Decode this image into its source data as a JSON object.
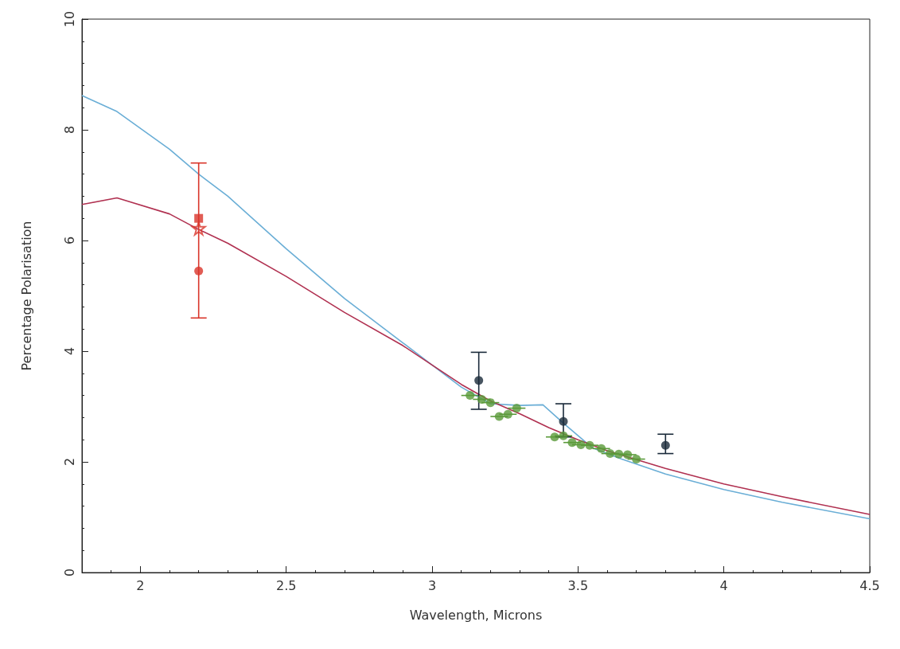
{
  "chart_data": {
    "type": "scatter",
    "xlabel": "Wavelength, Microns",
    "ylabel": "Percentage Polarisation",
    "xlim": [
      1.8,
      4.5
    ],
    "ylim": [
      0,
      10
    ],
    "xticks": [
      2,
      2.5,
      3,
      3.5,
      4,
      4.5
    ],
    "yticks": [
      0,
      2,
      4,
      6,
      8,
      10
    ],
    "grid": false,
    "series": [
      {
        "type": "line",
        "color": "#6aaed6",
        "marker": "none",
        "line_style": "solid",
        "x": [
          1.8,
          1.92,
          2.1,
          2.2,
          2.3,
          2.5,
          2.7,
          2.9,
          3.0,
          3.1,
          3.2,
          3.3,
          3.38,
          3.45,
          3.55,
          3.65,
          3.8,
          4.0,
          4.2,
          4.5
        ],
        "values": [
          8.62,
          8.33,
          7.65,
          7.2,
          6.8,
          5.85,
          4.95,
          4.15,
          3.75,
          3.35,
          3.05,
          3.02,
          3.03,
          2.7,
          2.25,
          2.05,
          1.78,
          1.5,
          1.27,
          0.97
        ]
      },
      {
        "type": "line",
        "color": "#b03050",
        "marker": "none",
        "line_style": "solid",
        "x": [
          1.8,
          1.92,
          2.1,
          2.2,
          2.3,
          2.5,
          2.7,
          2.9,
          3.0,
          3.1,
          3.2,
          3.3,
          3.4,
          3.5,
          3.6,
          3.8,
          4.0,
          4.2,
          4.5
        ],
        "values": [
          6.65,
          6.77,
          6.48,
          6.2,
          5.95,
          5.35,
          4.7,
          4.1,
          3.75,
          3.4,
          3.1,
          2.87,
          2.62,
          2.4,
          2.2,
          1.88,
          1.6,
          1.37,
          1.05
        ]
      },
      {
        "color": "#5a9a3a",
        "marker": "circle",
        "x": [
          3.13,
          3.17,
          3.2,
          3.23,
          3.26,
          3.29,
          3.42,
          3.45,
          3.48,
          3.51,
          3.54,
          3.58,
          3.61,
          3.64,
          3.67,
          3.7
        ],
        "values": [
          3.2,
          3.13,
          3.07,
          2.82,
          2.86,
          2.97,
          2.45,
          2.47,
          2.35,
          2.31,
          2.3,
          2.24,
          2.15,
          2.14,
          2.13,
          2.05
        ],
        "xerrors": [
          0.03,
          0.03,
          0.03,
          0.03,
          0.03,
          0.03,
          0.03,
          0.03,
          0.03,
          0.03,
          0.03,
          0.03,
          0.03,
          0.03,
          0.03,
          0.03
        ]
      },
      {
        "color": "#1a2a3a",
        "marker": "circle",
        "x": [
          3.16,
          3.45,
          3.8
        ],
        "values": [
          3.47,
          2.73,
          2.3
        ],
        "errors": [
          [
            2.95,
            3.98
          ],
          [
            2.45,
            3.05
          ],
          [
            2.15,
            2.5
          ]
        ]
      },
      {
        "type": "scatter",
        "color": "#d9352a",
        "marker": "circle",
        "x": [
          2.2
        ],
        "values": [
          5.45
        ],
        "errors": [
          [
            4.6,
            7.4
          ]
        ]
      },
      {
        "type": "scatter",
        "color": "#d9352a",
        "marker": "square",
        "x": [
          2.2
        ],
        "values": [
          6.4
        ]
      },
      {
        "type": "scatter",
        "color": "#d9352a",
        "marker": "star",
        "x": [
          2.2
        ],
        "values": [
          6.22
        ]
      }
    ]
  }
}
